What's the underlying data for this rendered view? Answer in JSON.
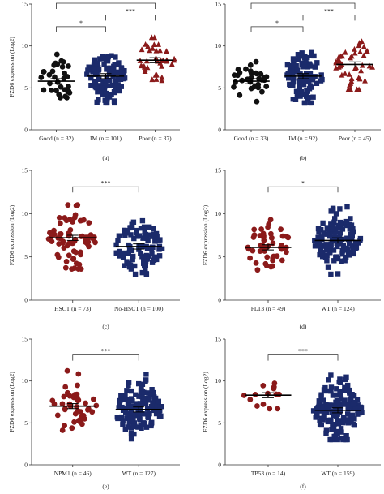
{
  "colors": {
    "black": "#111111",
    "navy": "#1b2a6b",
    "darkred": "#8b1a1a",
    "axis": "#333333"
  },
  "chart_data": [
    {
      "type": "scatter",
      "panel": "(a)",
      "ylabel": "FZD6 expression (Log2)",
      "ylim": [
        0,
        15
      ],
      "yticks": [
        0,
        5,
        10,
        15
      ],
      "grid": false,
      "groups": [
        {
          "label": "Good (n = 32)",
          "n": 32,
          "mean": 5.8,
          "sd": 1.4,
          "min": 3.0,
          "max": 9.0,
          "marker": "circle",
          "color": "#111111"
        },
        {
          "label": "IM (n = 101)",
          "n": 101,
          "mean": 6.4,
          "sd": 1.7,
          "min": 3.2,
          "max": 10.8,
          "marker": "square",
          "color": "#1b2a6b"
        },
        {
          "label": "Poor (n = 37)",
          "n": 37,
          "mean": 8.3,
          "sd": 1.5,
          "min": 4.8,
          "max": 11.0,
          "marker": "triangle",
          "color": "#8b1a1a"
        }
      ],
      "comparisons": [
        {
          "from": 0,
          "to": 2,
          "label": "***",
          "level": 2
        },
        {
          "from": 1,
          "to": 2,
          "label": "***",
          "level": 1
        },
        {
          "from": 0,
          "to": 1,
          "label": "*",
          "level": 0
        }
      ]
    },
    {
      "type": "scatter",
      "panel": "(b)",
      "ylabel": "",
      "ylim": [
        0,
        15
      ],
      "yticks": [
        0,
        5,
        10,
        15
      ],
      "grid": false,
      "groups": [
        {
          "label": "Good (n = 33)",
          "n": 33,
          "mean": 5.8,
          "sd": 1.4,
          "min": 3.0,
          "max": 9.0,
          "marker": "circle",
          "color": "#111111"
        },
        {
          "label": "IM (n = 92)",
          "n": 92,
          "mean": 6.4,
          "sd": 1.7,
          "min": 3.2,
          "max": 10.8,
          "marker": "square",
          "color": "#1b2a6b"
        },
        {
          "label": "Poor (n = 45)",
          "n": 45,
          "mean": 7.8,
          "sd": 1.5,
          "min": 4.8,
          "max": 11.0,
          "marker": "triangle",
          "color": "#8b1a1a"
        }
      ],
      "comparisons": [
        {
          "from": 0,
          "to": 2,
          "label": "***",
          "level": 2
        },
        {
          "from": 1,
          "to": 2,
          "label": "***",
          "level": 1
        },
        {
          "from": 0,
          "to": 1,
          "label": "*",
          "level": 0
        }
      ]
    },
    {
      "type": "scatter",
      "panel": "(c)",
      "ylabel": "FZD6 expression (Log2)",
      "ylim": [
        0,
        15
      ],
      "yticks": [
        0,
        5,
        10,
        15
      ],
      "grid": false,
      "groups": [
        {
          "label": "HSCT (n = 73)",
          "n": 73,
          "mean": 7.2,
          "sd": 1.7,
          "min": 3.6,
          "max": 11.0,
          "marker": "circle",
          "color": "#8b1a1a"
        },
        {
          "label": "No-HSCT (n = 100)",
          "n": 100,
          "mean": 6.2,
          "sd": 1.6,
          "min": 3.0,
          "max": 10.5,
          "marker": "square",
          "color": "#1b2a6b"
        }
      ],
      "comparisons": [
        {
          "from": 0,
          "to": 1,
          "label": "***",
          "level": 0
        }
      ]
    },
    {
      "type": "scatter",
      "panel": "(d)",
      "ylabel": "FZD6 expression (Log2)",
      "ylim": [
        0,
        15
      ],
      "yticks": [
        0,
        5,
        10,
        15
      ],
      "grid": false,
      "groups": [
        {
          "label": "FLT3 (n = 49)",
          "n": 49,
          "mean": 6.1,
          "sd": 1.5,
          "min": 3.5,
          "max": 9.3,
          "marker": "circle",
          "color": "#8b1a1a"
        },
        {
          "label": "WT (n = 124)",
          "n": 124,
          "mean": 6.9,
          "sd": 1.7,
          "min": 3.0,
          "max": 10.8,
          "marker": "square",
          "color": "#1b2a6b"
        }
      ],
      "comparisons": [
        {
          "from": 0,
          "to": 1,
          "label": "*",
          "level": 0
        }
      ]
    },
    {
      "type": "scatter",
      "panel": "(e)",
      "ylabel": "FZD6 expression (Log2)",
      "ylim": [
        0,
        15
      ],
      "yticks": [
        0,
        5,
        10,
        15
      ],
      "grid": false,
      "groups": [
        {
          "label": "NPM1 (n = 46)",
          "n": 46,
          "mean": 7.0,
          "sd": 1.4,
          "min": 4.0,
          "max": 11.3,
          "marker": "circle",
          "color": "#8b1a1a"
        },
        {
          "label": "WT (n = 127)",
          "n": 127,
          "mean": 6.6,
          "sd": 1.6,
          "min": 3.0,
          "max": 10.8,
          "marker": "square",
          "color": "#1b2a6b"
        }
      ],
      "comparisons": [
        {
          "from": 0,
          "to": 1,
          "label": "***",
          "level": 0
        }
      ]
    },
    {
      "type": "scatter",
      "panel": "(f)",
      "ylabel": "FZD6 expression (Log2)",
      "ylim": [
        0,
        15
      ],
      "yticks": [
        0,
        5,
        10,
        15
      ],
      "grid": false,
      "groups": [
        {
          "label": "TP53 (n = 14)",
          "n": 14,
          "mean": 8.3,
          "sd": 0.9,
          "min": 6.7,
          "max": 10.1,
          "marker": "circle",
          "color": "#8b1a1a"
        },
        {
          "label": "WT (n = 159)",
          "n": 159,
          "mean": 6.5,
          "sd": 1.7,
          "min": 3.0,
          "max": 10.8,
          "marker": "square",
          "color": "#1b2a6b"
        }
      ],
      "comparisons": [
        {
          "from": 0,
          "to": 1,
          "label": "***",
          "level": 0
        }
      ]
    }
  ]
}
